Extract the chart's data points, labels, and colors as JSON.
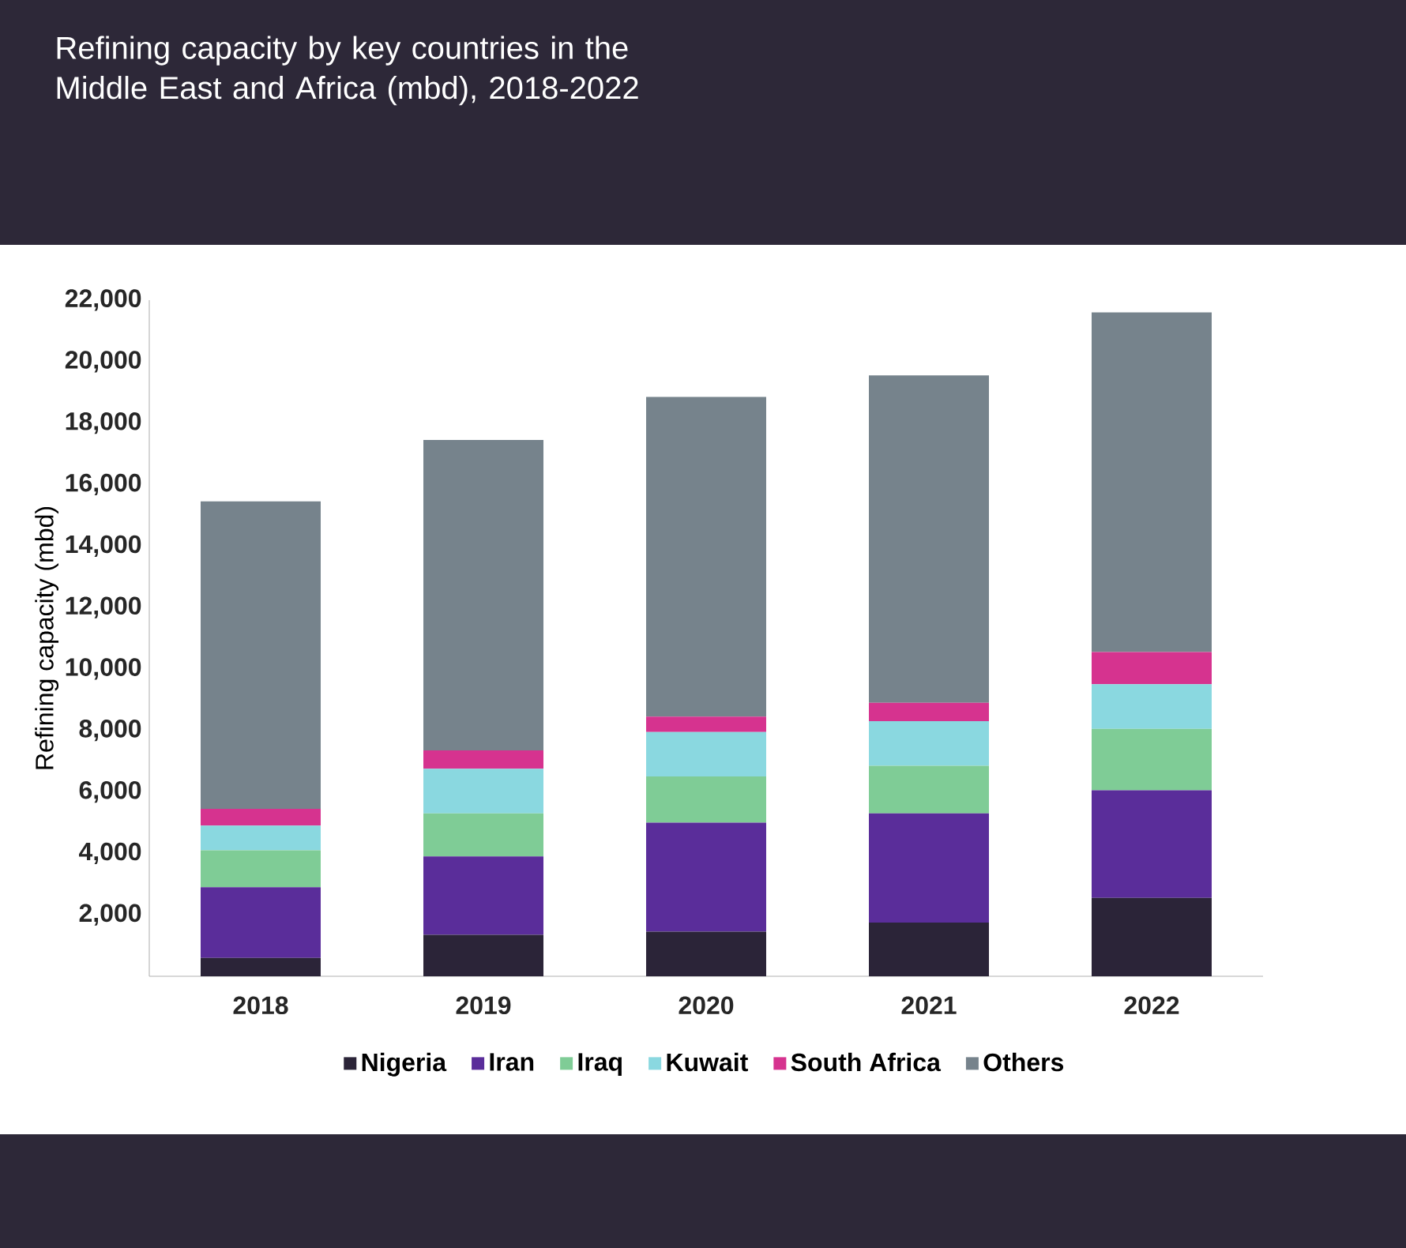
{
  "chart_data": {
    "type": "bar",
    "stacked": true,
    "title": "Refining capacity by key countries in the Middle East and Africa (mbd), 2018-2022",
    "ylabel": "Refining capacity (mbd)",
    "categories": [
      "2018",
      "2019",
      "2020",
      "2021",
      "2022"
    ],
    "series": [
      {
        "name": "Nigeria",
        "color": "#2b2438",
        "values": [
          600,
          1350,
          1450,
          1750,
          2550
        ]
      },
      {
        "name": "Iran",
        "color": "#5a2d9a",
        "values": [
          2300,
          2550,
          3550,
          3550,
          3500
        ]
      },
      {
        "name": "Iraq",
        "color": "#7fcc96",
        "values": [
          1200,
          1400,
          1500,
          1550,
          2000
        ]
      },
      {
        "name": "Kuwait",
        "color": "#8ad8e0",
        "values": [
          800,
          1450,
          1450,
          1450,
          1450
        ]
      },
      {
        "name": "South Africa",
        "color": "#d6338f",
        "values": [
          550,
          600,
          500,
          600,
          1050
        ]
      },
      {
        "name": "Others",
        "color": "#76838c",
        "values": [
          10000,
          10100,
          10400,
          10650,
          11050
        ]
      }
    ],
    "ylim": [
      0,
      22000
    ],
    "yticks": [
      {
        "value": 2000,
        "label": "2,000"
      },
      {
        "value": 4000,
        "label": "4,000"
      },
      {
        "value": 6000,
        "label": "6,000"
      },
      {
        "value": 8000,
        "label": "8,000"
      },
      {
        "value": 10000,
        "label": "10,000"
      },
      {
        "value": 12000,
        "label": "12,000"
      },
      {
        "value": 14000,
        "label": "14,000"
      },
      {
        "value": 16000,
        "label": "16,000"
      },
      {
        "value": 18000,
        "label": "18,000"
      },
      {
        "value": 20000,
        "label": "20,000"
      },
      {
        "value": 22000,
        "label": "22,000"
      }
    ],
    "grid": false,
    "legend": "bottom"
  }
}
